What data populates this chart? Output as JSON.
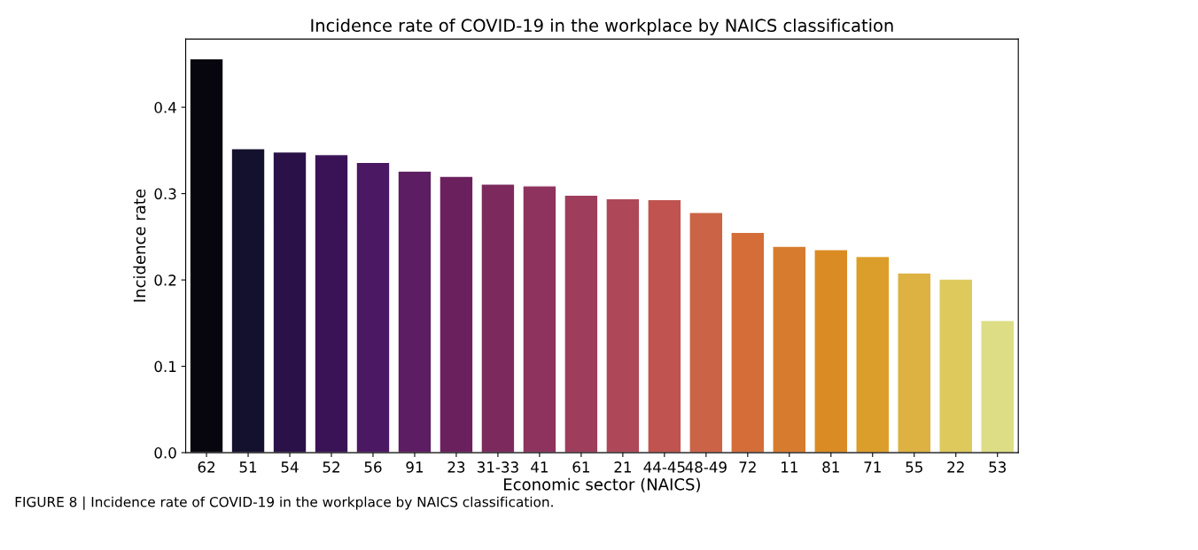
{
  "chart_data": {
    "type": "bar",
    "title": "Incidence rate of COVID-19 in the workplace by NAICS classification",
    "xlabel": "Economic sector (NAICS)",
    "ylabel": "Incidence rate",
    "categories": [
      "62",
      "51",
      "54",
      "52",
      "56",
      "91",
      "23",
      "31-33",
      "41",
      "61",
      "21",
      "44-45",
      "48-49",
      "72",
      "11",
      "81",
      "71",
      "55",
      "22",
      "53"
    ],
    "values": [
      0.456,
      0.352,
      0.348,
      0.345,
      0.336,
      0.326,
      0.32,
      0.311,
      0.309,
      0.298,
      0.294,
      0.293,
      0.278,
      0.255,
      0.239,
      0.235,
      0.227,
      0.208,
      0.201,
      0.153
    ],
    "colors": [
      "#07060f",
      "#13112e",
      "#2a1147",
      "#3a1356",
      "#4b1863",
      "#5c1d62",
      "#6b205e",
      "#7c2a5e",
      "#8d335d",
      "#9f3d5c",
      "#ae4858",
      "#c0534f",
      "#cb6346",
      "#d46d38",
      "#d77c2e",
      "#da8b24",
      "#dc9e2a",
      "#ddb142",
      "#dec95c",
      "#dddd85"
    ],
    "ylim": [
      0,
      0.479
    ],
    "yticks": [
      {
        "value": 0,
        "label": "0.0"
      },
      0.1,
      0.2,
      0.3,
      0.4
    ],
    "annotations": [
      "FIGURE 8 | Incidence rate of COVID-19 in the workplace by NAICS classification."
    ]
  }
}
